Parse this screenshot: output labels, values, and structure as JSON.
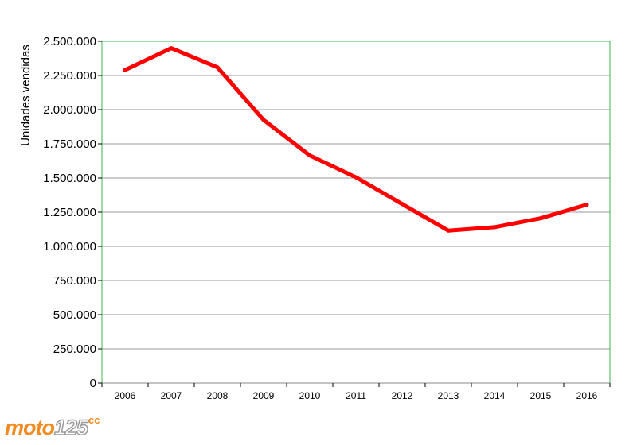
{
  "chart_data": {
    "type": "line",
    "title": "",
    "xlabel": "",
    "ylabel": "Unidades vendidas",
    "categories": [
      "2006",
      "2007",
      "2008",
      "2009",
      "2010",
      "2011",
      "2012",
      "2013",
      "2014",
      "2015",
      "2016"
    ],
    "series": [
      {
        "values": [
          2290000,
          2450000,
          2310000,
          1925000,
          1665000,
          1505000,
          1310000,
          1115000,
          1140000,
          1205000,
          1305000
        ],
        "color": "#ff0000"
      }
    ],
    "ylim": [
      0,
      2500000
    ],
    "yticks": [
      0,
      250000,
      500000,
      750000,
      1000000,
      1250000,
      1500000,
      1750000,
      2000000,
      2250000,
      2500000
    ],
    "ytick_labels": [
      "0",
      "250.000",
      "500.000",
      "750.000",
      "1.000.000",
      "1.250.000",
      "1.500.000",
      "1.750.000",
      "2.000.000",
      "2.250.000",
      "2.500.000"
    ],
    "grid": true,
    "plot_border_color": "#3cb44b",
    "gridline_color": "#999999"
  },
  "logo": {
    "moto": "moto",
    "num": "125",
    "cc": "cc"
  }
}
